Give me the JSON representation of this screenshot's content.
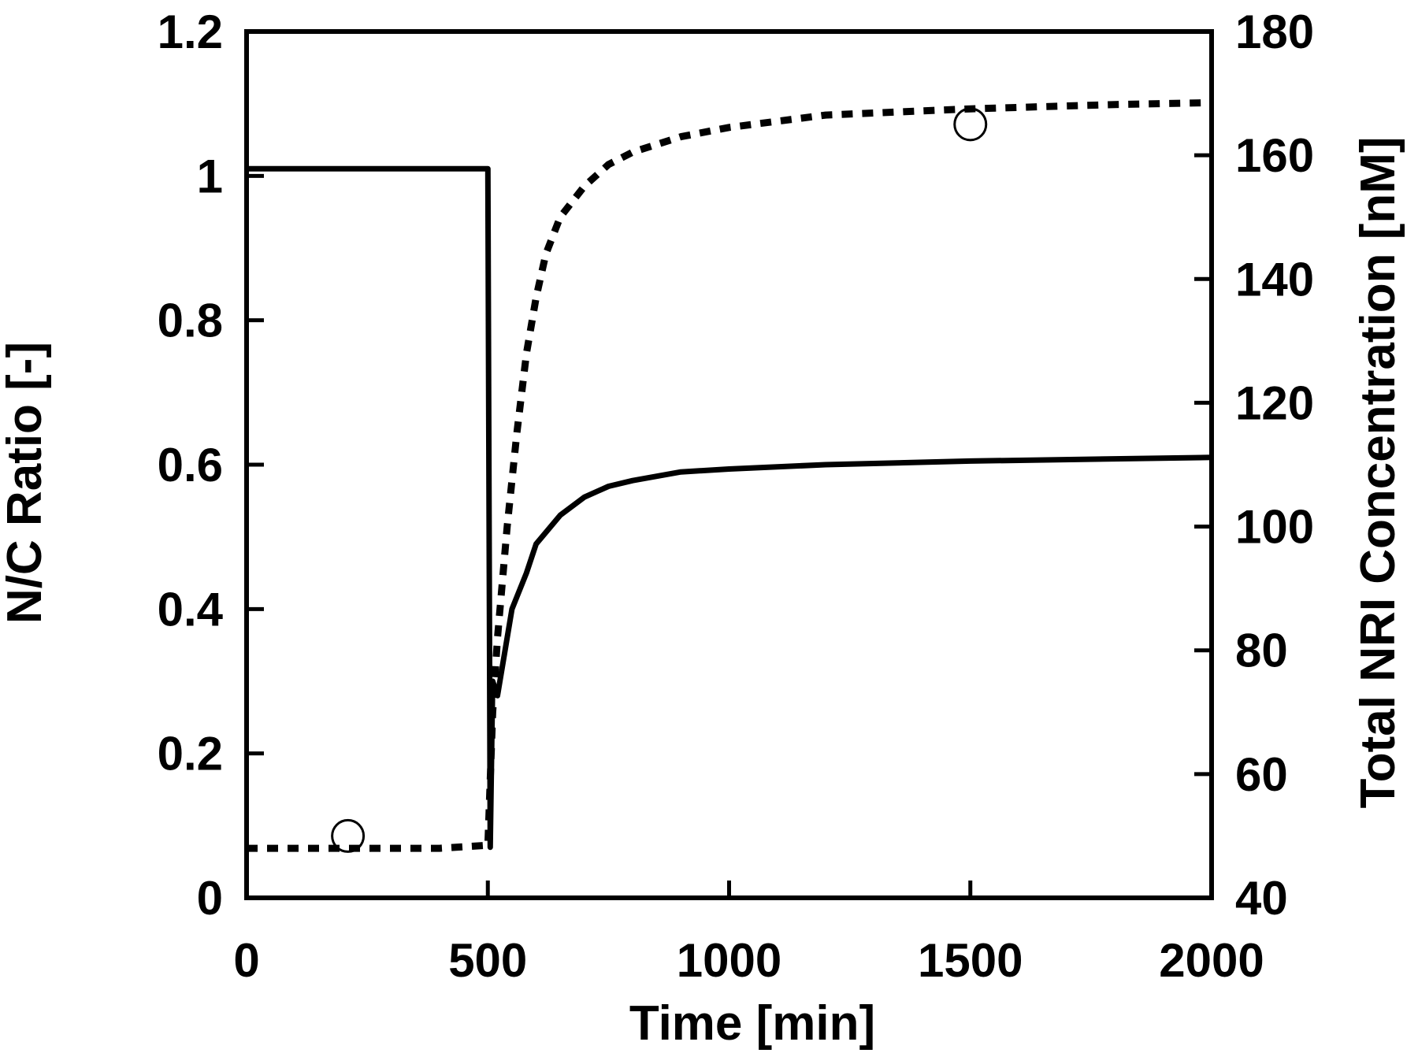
{
  "chart_data": {
    "type": "line",
    "xlabel": "Time [min]",
    "ylabel_left": "N/C Ratio [-]",
    "ylabel_right": "Total NRI Concentration [nM]",
    "xlim": [
      0,
      2000
    ],
    "ylim_left": [
      0,
      1.2
    ],
    "ylim_right": [
      40,
      180
    ],
    "x_ticks": [
      0,
      500,
      1000,
      1500,
      2000
    ],
    "y_ticks_left": [
      0,
      0.2,
      0.4,
      0.6,
      0.8,
      1,
      1.2
    ],
    "y_ticks_left_labels": [
      "0",
      "0.2",
      "0.4",
      "0.6",
      "0.8",
      "1",
      "1.2"
    ],
    "y_ticks_right": [
      40,
      60,
      80,
      100,
      120,
      140,
      160,
      180
    ],
    "grid": false,
    "legend": "none",
    "series": [
      {
        "axis": "left",
        "style": "solid",
        "color": "#000000",
        "x": [
          0,
          100,
          200,
          300,
          400,
          450,
          498,
          500,
          505,
          510,
          520,
          550,
          580,
          600,
          650,
          700,
          750,
          800,
          900,
          1000,
          1200,
          1500,
          2000
        ],
        "y": [
          1.01,
          1.01,
          1.01,
          1.01,
          1.01,
          1.01,
          1.01,
          1.01,
          0.07,
          0.3,
          0.28,
          0.4,
          0.45,
          0.49,
          0.53,
          0.555,
          0.57,
          0.578,
          0.59,
          0.594,
          0.6,
          0.605,
          0.61
        ]
      },
      {
        "axis": "right",
        "style": "dashed",
        "color": "#000000",
        "x": [
          0,
          100,
          200,
          300,
          400,
          500,
          510,
          520,
          540,
          560,
          580,
          600,
          620,
          650,
          700,
          750,
          800,
          900,
          1000,
          1200,
          1500,
          1800,
          2000
        ],
        "y": [
          48,
          48,
          48,
          48,
          48,
          48.5,
          70,
          82,
          100,
          115,
          128,
          137,
          144,
          150,
          155,
          158.5,
          160.5,
          163,
          164.5,
          166.5,
          167.5,
          168.2,
          168.5
        ]
      },
      {
        "axis": "right",
        "style": "markers",
        "marker": "open-circle",
        "color": "#000000",
        "x": [
          210,
          1500
        ],
        "y": [
          50,
          165
        ]
      }
    ]
  }
}
